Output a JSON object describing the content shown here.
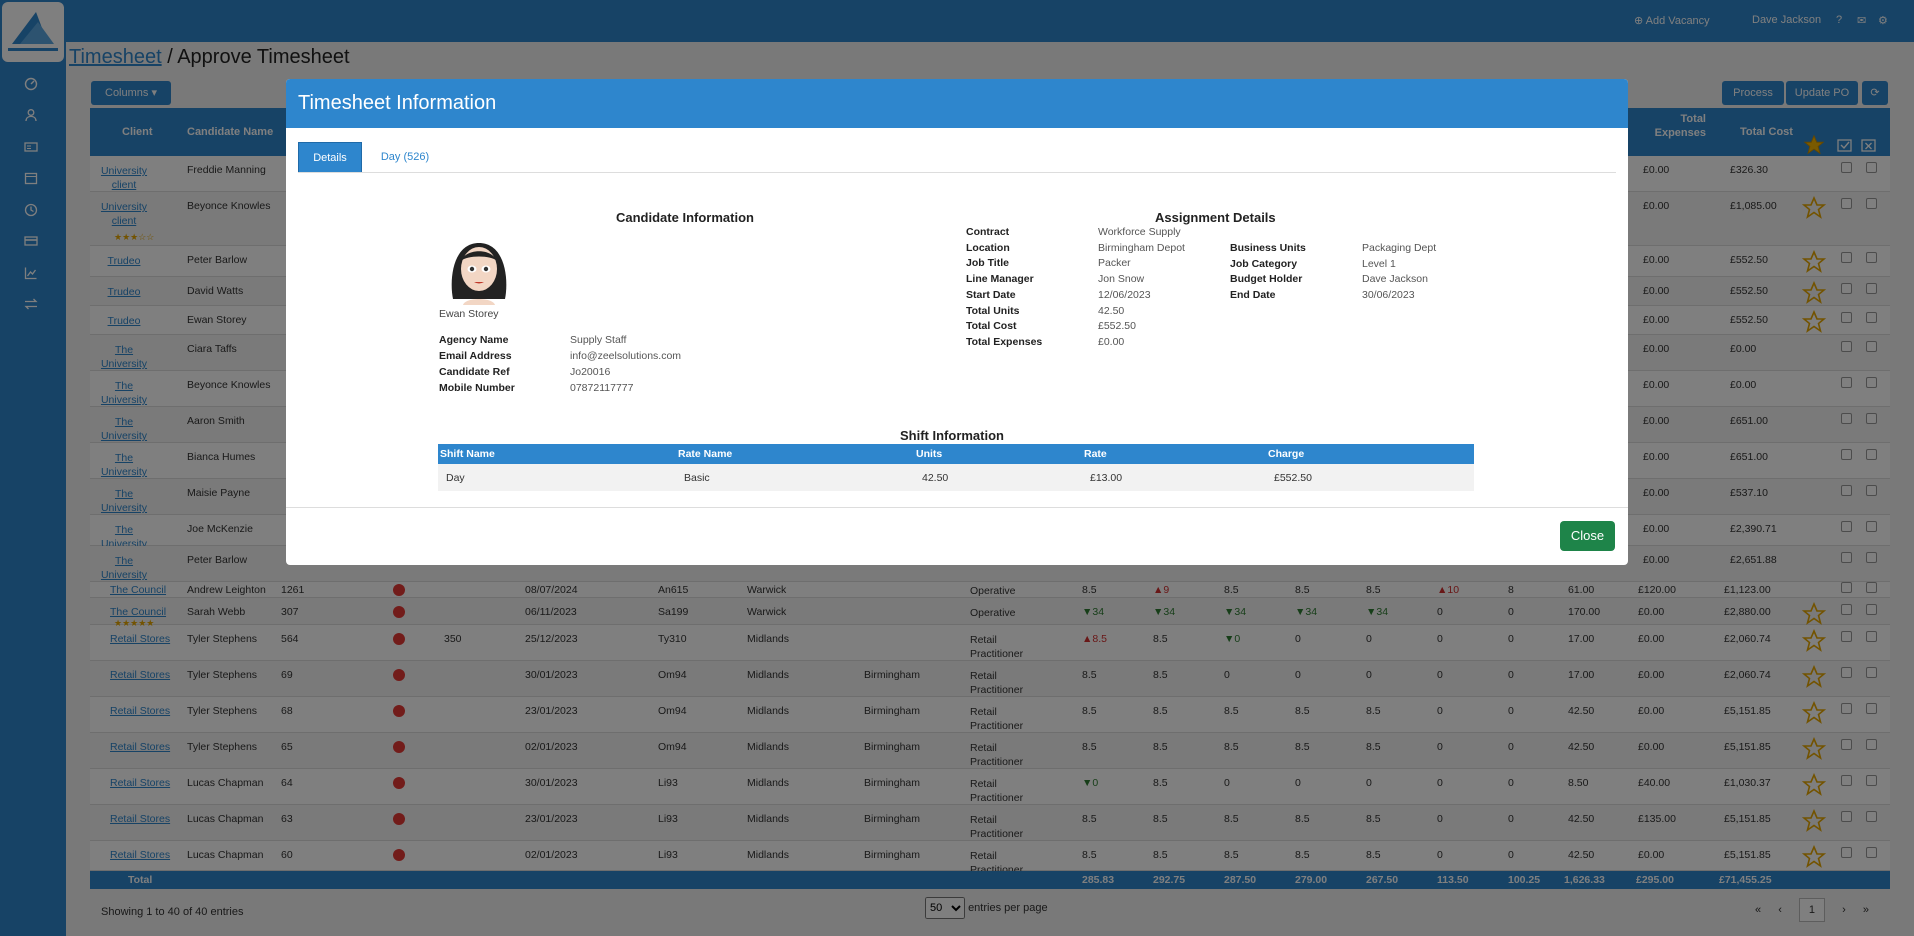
{
  "nav": {
    "icons": [
      "dashboard-icon",
      "user-icon",
      "id-card-icon",
      "calendar-icon",
      "clock-icon",
      "card-icon",
      "chart-icon",
      "transfer-icon"
    ]
  },
  "topbar": {
    "add_vacancy": "Add Vacancy",
    "user": "Dave Jackson"
  },
  "page": {
    "breadcrumb_link": "Timesheet",
    "separator": " / ",
    "title": "Approve Timesheet"
  },
  "toolbar": {
    "columns": "Columns",
    "process": "Process",
    "update_po": "Update PO"
  },
  "grid": {
    "headers": {
      "client": "Client",
      "candidate": "Candidate Name",
      "total_expenses": "Total Expenses",
      "total_cost": "Total Cost"
    },
    "rows": [
      {
        "client": "University client",
        "candidate": "Freddie Manning",
        "expenses": "£0.00",
        "cost": "£326.30",
        "star": false
      },
      {
        "client": "University client",
        "candidate": "Beyonce Knowles",
        "expenses": "£0.00",
        "cost": "£1,085.00",
        "star": true,
        "rating": "★★★☆☆"
      },
      {
        "client": "Trudeo",
        "candidate": "Peter Barlow",
        "expenses": "£0.00",
        "cost": "£552.50",
        "star": true
      },
      {
        "client": "Trudeo",
        "candidate": "David Watts",
        "expenses": "£0.00",
        "cost": "£552.50",
        "star": true
      },
      {
        "client": "Trudeo",
        "candidate": "Ewan Storey",
        "expenses": "£0.00",
        "cost": "£552.50",
        "star": true
      },
      {
        "client": "The University",
        "candidate": "Ciara Taffs",
        "expenses": "£0.00",
        "cost": "£0.00",
        "star": false
      },
      {
        "client": "The University",
        "candidate": "Beyonce Knowles",
        "expenses": "£0.00",
        "cost": "£0.00",
        "star": false
      },
      {
        "client": "The University",
        "candidate": "Aaron Smith",
        "expenses": "£0.00",
        "cost": "£651.00",
        "star": false
      },
      {
        "client": "The University",
        "candidate": "Bianca Humes",
        "expenses": "£0.00",
        "cost": "£651.00",
        "star": false
      },
      {
        "client": "The University",
        "candidate": "Maisie Payne",
        "expenses": "£0.00",
        "cost": "£537.10",
        "star": false
      },
      {
        "client": "The University",
        "candidate": "Joe McKenzie",
        "expenses": "£0.00",
        "cost": "£2,390.71",
        "star": false
      },
      {
        "client": "The University",
        "candidate": "Peter Barlow",
        "expenses": "£0.00",
        "cost": "£2,651.88",
        "star": false
      }
    ],
    "lower_rows": [
      {
        "client": "The Council",
        "candidate": "Andrew Leighton",
        "id": "1261",
        "po": "",
        "date": "08/07/2024",
        "ref": "An615",
        "region": "Warwick",
        "area": "",
        "role": "Operative",
        "d1": "8.5",
        "d2": "▲9",
        "d3": "8.5",
        "d4": "8.5",
        "d5": "8.5",
        "d6": "▲10",
        "d7": "8",
        "units": "61.00",
        "expenses": "£120.00",
        "cost": "£1,123.00",
        "star": false
      },
      {
        "client": "The Council",
        "candidate": "Sarah Webb",
        "id": "307",
        "po": "",
        "date": "06/11/2023",
        "ref": "Sa199",
        "region": "Warwick",
        "area": "",
        "role": "Operative",
        "d1": "▼34",
        "d2": "▼34",
        "d3": "▼34",
        "d4": "▼34",
        "d5": "▼34",
        "d6": "0",
        "d7": "0",
        "units": "170.00",
        "expenses": "£0.00",
        "cost": "£2,880.00",
        "star": true,
        "rating": "★★★★★"
      },
      {
        "client": "Retail Stores",
        "candidate": "Tyler Stephens",
        "id": "564",
        "po": "350",
        "date": "25/12/2023",
        "ref": "Ty310",
        "region": "Midlands",
        "area": "",
        "role": "Retail Practitioner",
        "d1": "▲8.5",
        "d2": "8.5",
        "d3": "▼0",
        "d4": "0",
        "d5": "0",
        "d6": "0",
        "d7": "0",
        "units": "17.00",
        "expenses": "£0.00",
        "cost": "£2,060.74",
        "star": true
      },
      {
        "client": "Retail Stores",
        "candidate": "Tyler Stephens",
        "id": "69",
        "po": "",
        "date": "30/01/2023",
        "ref": "Om94",
        "region": "Midlands",
        "area": "Birmingham",
        "role": "Retail Practitioner",
        "d1": "8.5",
        "d2": "8.5",
        "d3": "0",
        "d4": "0",
        "d5": "0",
        "d6": "0",
        "d7": "0",
        "units": "17.00",
        "expenses": "£0.00",
        "cost": "£2,060.74",
        "star": true
      },
      {
        "client": "Retail Stores",
        "candidate": "Tyler Stephens",
        "id": "68",
        "po": "",
        "date": "23/01/2023",
        "ref": "Om94",
        "region": "Midlands",
        "area": "Birmingham",
        "role": "Retail Practitioner",
        "d1": "8.5",
        "d2": "8.5",
        "d3": "8.5",
        "d4": "8.5",
        "d5": "8.5",
        "d6": "0",
        "d7": "0",
        "units": "42.50",
        "expenses": "£0.00",
        "cost": "£5,151.85",
        "star": true
      },
      {
        "client": "Retail Stores",
        "candidate": "Tyler Stephens",
        "id": "65",
        "po": "",
        "date": "02/01/2023",
        "ref": "Om94",
        "region": "Midlands",
        "area": "Birmingham",
        "role": "Retail Practitioner",
        "d1": "8.5",
        "d2": "8.5",
        "d3": "8.5",
        "d4": "8.5",
        "d5": "8.5",
        "d6": "0",
        "d7": "0",
        "units": "42.50",
        "expenses": "£0.00",
        "cost": "£5,151.85",
        "star": true
      },
      {
        "client": "Retail Stores",
        "candidate": "Lucas Chapman",
        "id": "64",
        "po": "",
        "date": "30/01/2023",
        "ref": "Li93",
        "region": "Midlands",
        "area": "Birmingham",
        "role": "Retail Practitioner",
        "d1": "▼0",
        "d2": "8.5",
        "d3": "0",
        "d4": "0",
        "d5": "0",
        "d6": "0",
        "d7": "0",
        "units": "8.50",
        "expenses": "£40.00",
        "cost": "£1,030.37",
        "star": true
      },
      {
        "client": "Retail Stores",
        "candidate": "Lucas Chapman",
        "id": "63",
        "po": "",
        "date": "23/01/2023",
        "ref": "Li93",
        "region": "Midlands",
        "area": "Birmingham",
        "role": "Retail Practitioner",
        "d1": "8.5",
        "d2": "8.5",
        "d3": "8.5",
        "d4": "8.5",
        "d5": "8.5",
        "d6": "0",
        "d7": "0",
        "units": "42.50",
        "expenses": "£135.00",
        "cost": "£5,151.85",
        "star": true
      },
      {
        "client": "Retail Stores",
        "candidate": "Lucas Chapman",
        "id": "60",
        "po": "",
        "date": "02/01/2023",
        "ref": "Li93",
        "region": "Midlands",
        "area": "Birmingham",
        "role": "Retail Practitioner",
        "d1": "8.5",
        "d2": "8.5",
        "d3": "8.5",
        "d4": "8.5",
        "d5": "8.5",
        "d6": "0",
        "d7": "0",
        "units": "42.50",
        "expenses": "£0.00",
        "cost": "£5,151.85",
        "star": true
      }
    ],
    "totals": {
      "label": "Total",
      "d1": "285.83",
      "d2": "292.75",
      "d3": "287.50",
      "d4": "279.00",
      "d5": "267.50",
      "d6": "113.50",
      "d7": "100.25",
      "units": "1,626.33",
      "expenses": "£295.00",
      "cost": "£71,455.25"
    },
    "footer": {
      "info": "Showing 1 to 40 of 40 entries",
      "per_page": "50",
      "per_page_label": "entries per page",
      "page": "1"
    }
  },
  "modal": {
    "title": "Timesheet Information",
    "tabs": {
      "details": "Details",
      "day": "Day (526)"
    },
    "candidate": {
      "section_title": "Candidate Information",
      "name": "Ewan Storey",
      "fields": [
        {
          "label": "Agency Name",
          "value": "Supply Staff"
        },
        {
          "label": "Email Address",
          "value": "info@zeelsolutions.com"
        },
        {
          "label": "Candidate Ref",
          "value": "Jo20016"
        },
        {
          "label": "Mobile Number",
          "value": "07872117777"
        }
      ]
    },
    "assignment": {
      "section_title": "Assignment Details",
      "left": [
        {
          "label": "Contract",
          "value": "Workforce Supply"
        },
        {
          "label": "Location",
          "value": "Birmingham Depot"
        },
        {
          "label": "Job Title",
          "value": "Packer"
        },
        {
          "label": "Line Manager",
          "value": "Jon Snow"
        },
        {
          "label": "Start Date",
          "value": "12/06/2023"
        },
        {
          "label": "Total Units",
          "value": "42.50"
        },
        {
          "label": "Total Cost",
          "value": "£552.50"
        },
        {
          "label": "Total Expenses",
          "value": "£0.00"
        }
      ],
      "right": [
        {
          "label": "Business Units",
          "value": "Packaging Dept"
        },
        {
          "label": "Job Category",
          "value": "Level 1"
        },
        {
          "label": "Budget Holder",
          "value": "Dave Jackson"
        },
        {
          "label": "End Date",
          "value": "30/06/2023"
        }
      ]
    },
    "shift": {
      "section_title": "Shift Information",
      "headers": [
        "Shift Name",
        "Rate Name",
        "Units",
        "Rate",
        "Charge"
      ],
      "row": [
        "Day",
        "Basic",
        "42.50",
        "£13.00",
        "£552.50"
      ]
    },
    "close_label": "Close"
  }
}
